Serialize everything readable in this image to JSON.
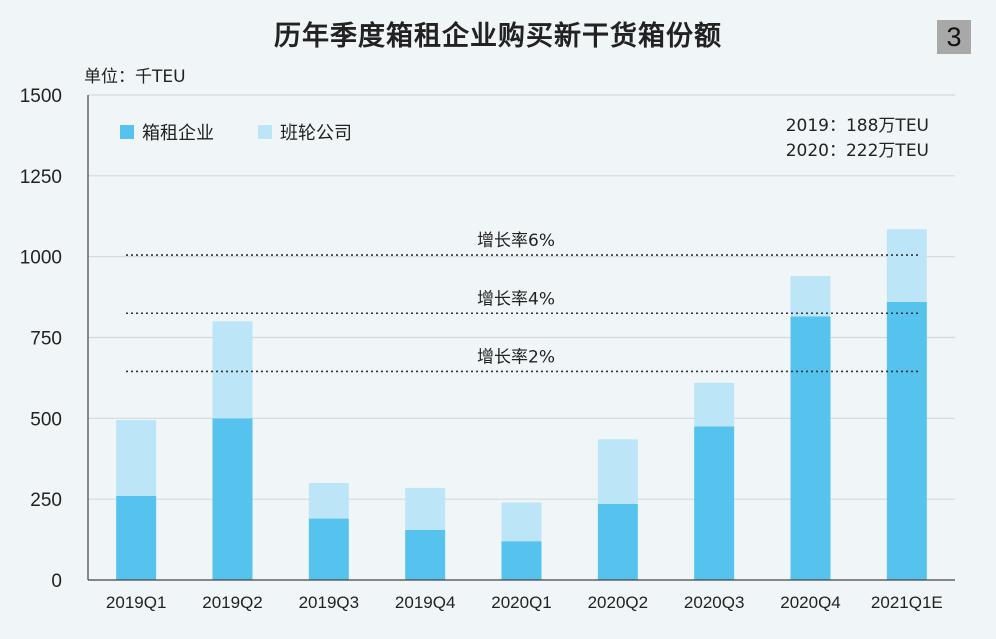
{
  "header": {
    "title": "历年季度箱租企业购买新干货箱份额",
    "page_number": "3",
    "unit_label": "单位：千TEU"
  },
  "chart_data": {
    "type": "bar",
    "stacked": true,
    "title": "历年季度箱租企业购买新干货箱份额",
    "ylabel": "单位：千TEU",
    "ylim": [
      0,
      1500
    ],
    "yticks": [
      0,
      250,
      500,
      750,
      1000,
      1250,
      1500
    ],
    "grid": true,
    "legend_position": "top-left",
    "categories": [
      "2019Q1",
      "2019Q2",
      "2019Q3",
      "2019Q4",
      "2020Q1",
      "2020Q2",
      "2020Q3",
      "2020Q4",
      "2021Q1E"
    ],
    "series": [
      {
        "name": "箱租企业",
        "color": "#55c3ee",
        "values": [
          260,
          500,
          190,
          155,
          120,
          235,
          475,
          815,
          860
        ]
      },
      {
        "name": "班轮公司",
        "color": "#bde5f8",
        "values": [
          235,
          300,
          110,
          130,
          120,
          200,
          135,
          125,
          225
        ]
      }
    ],
    "reference_lines": [
      {
        "label": "增长率6%",
        "value": 1005
      },
      {
        "label": "增长率4%",
        "value": 825
      },
      {
        "label": "增长率2%",
        "value": 645
      }
    ],
    "annotations": [
      "2019：188万TEU",
      "2020：222万TEU"
    ]
  }
}
